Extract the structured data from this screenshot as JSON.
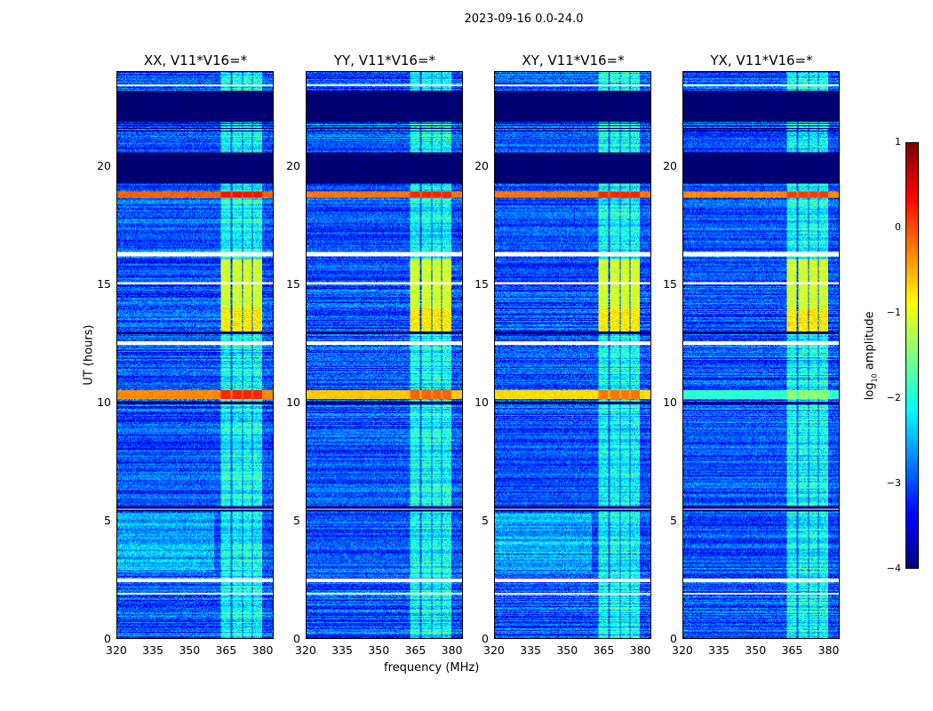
{
  "figure_title": "2023-09-16 0.0-24.0",
  "chart_data": {
    "type": "heatmap",
    "panels": [
      {
        "title": "XX, V11*V16=*",
        "rfi_10h": 0.1,
        "rfi_19h": 0.3
      },
      {
        "title": "YY, V11*V16=*",
        "rfi_10h": -0.2,
        "rfi_19h": 0.2
      },
      {
        "title": "XY, V11*V16=*",
        "rfi_10h": -0.3,
        "rfi_19h": 0.2
      },
      {
        "title": "YX, V11*V16=*",
        "rfi_10h": -1.5,
        "rfi_19h": 0.1
      }
    ],
    "xlabel": "frequency (MHz)",
    "ylabel": "UT (hours)",
    "xlim": [
      320,
      384.5
    ],
    "ylim": [
      0,
      24
    ],
    "xticks": [
      320,
      335,
      350,
      365,
      380
    ],
    "yticks": [
      0,
      5,
      10,
      15,
      20
    ],
    "colorbar": {
      "label": "log10 amplitude",
      "label_base": "log",
      "label_sub": "10",
      "label_rest": " amplitude",
      "range": [
        -4,
        1
      ],
      "ticks": [
        "1",
        "0",
        "−1",
        "−2",
        "−3",
        "−4"
      ],
      "tick_values": [
        1,
        0,
        -1,
        -2,
        -3,
        -4
      ],
      "colormap": "jet"
    },
    "bright_subbands_mhz": [
      [
        363,
        367
      ],
      [
        367.5,
        371.5
      ],
      [
        372,
        375.5
      ],
      [
        376,
        380
      ]
    ],
    "flagged_hours": [
      [
        1.85,
        1.95
      ],
      [
        2.4,
        2.55
      ],
      [
        5.45,
        5.5
      ],
      [
        12.45,
        12.6
      ],
      [
        15.0,
        15.1
      ],
      [
        16.2,
        16.4
      ],
      [
        23.4,
        23.5
      ]
    ],
    "low_hours": [
      [
        19.3,
        20.6
      ],
      [
        21.9,
        23.2
      ],
      [
        5.4,
        5.6
      ],
      [
        12.9,
        13.0
      ],
      [
        9.95,
        10.05
      ]
    ]
  }
}
